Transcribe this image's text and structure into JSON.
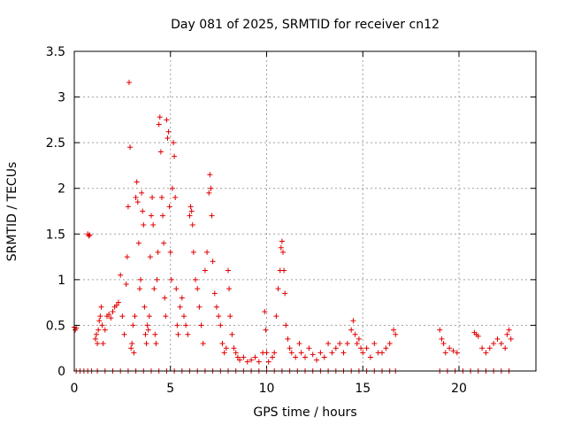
{
  "chart_data": {
    "type": "scatter",
    "title": "Day 081 of 2025, SRMTID for receiver cn12",
    "xlabel": "GPS time / hours",
    "ylabel": "SRMTID / TECUs",
    "xlim": [
      0,
      24
    ],
    "ylim": [
      0,
      3.5
    ],
    "x_ticks": [
      0,
      5,
      10,
      15,
      20
    ],
    "x_tick_labels": [
      "0",
      "5",
      "10",
      "15",
      "20"
    ],
    "y_ticks": [
      0,
      0.5,
      1,
      1.5,
      2,
      2.5,
      3,
      3.5
    ],
    "y_tick_labels": [
      "0",
      "0.5",
      "1",
      "1.5",
      "2",
      "2.5",
      "3",
      "3.5"
    ],
    "grid": true,
    "marker": "+",
    "color": "#e00000",
    "series": [
      {
        "name": "SRMTID",
        "points": [
          [
            0.0,
            0.48
          ],
          [
            0.05,
            0.45
          ],
          [
            0.1,
            0.47
          ],
          [
            0.7,
            1.5
          ],
          [
            0.75,
            1.48
          ],
          [
            0.8,
            1.49
          ],
          [
            1.1,
            0.35
          ],
          [
            1.15,
            0.4
          ],
          [
            1.2,
            0.3
          ],
          [
            1.25,
            0.45
          ],
          [
            1.3,
            0.55
          ],
          [
            1.35,
            0.6
          ],
          [
            1.4,
            0.7
          ],
          [
            1.45,
            0.5
          ],
          [
            1.5,
            0.3
          ],
          [
            1.6,
            0.45
          ],
          [
            1.7,
            0.6
          ],
          [
            1.8,
            0.62
          ],
          [
            1.9,
            0.58
          ],
          [
            2.0,
            0.65
          ],
          [
            2.1,
            0.7
          ],
          [
            2.2,
            0.72
          ],
          [
            2.3,
            0.75
          ],
          [
            2.4,
            1.05
          ],
          [
            2.5,
            0.6
          ],
          [
            2.6,
            0.4
          ],
          [
            2.7,
            0.95
          ],
          [
            2.75,
            1.25
          ],
          [
            2.8,
            1.8
          ],
          [
            2.85,
            3.16
          ],
          [
            2.9,
            2.45
          ],
          [
            2.95,
            0.25
          ],
          [
            3.0,
            0.3
          ],
          [
            3.05,
            0.5
          ],
          [
            3.1,
            0.2
          ],
          [
            3.15,
            0.6
          ],
          [
            3.2,
            1.9
          ],
          [
            3.25,
            2.07
          ],
          [
            3.3,
            1.85
          ],
          [
            3.35,
            1.4
          ],
          [
            3.4,
            0.9
          ],
          [
            3.45,
            1.0
          ],
          [
            3.5,
            1.95
          ],
          [
            3.55,
            1.75
          ],
          [
            3.6,
            1.6
          ],
          [
            3.65,
            0.7
          ],
          [
            3.7,
            0.4
          ],
          [
            3.75,
            0.3
          ],
          [
            3.8,
            0.5
          ],
          [
            3.85,
            0.45
          ],
          [
            3.9,
            0.6
          ],
          [
            3.95,
            1.25
          ],
          [
            4.0,
            1.7
          ],
          [
            4.05,
            1.9
          ],
          [
            4.1,
            1.6
          ],
          [
            4.15,
            0.9
          ],
          [
            4.2,
            0.4
          ],
          [
            4.25,
            0.3
          ],
          [
            4.3,
            1.0
          ],
          [
            4.35,
            1.3
          ],
          [
            4.4,
            2.7
          ],
          [
            4.45,
            2.78
          ],
          [
            4.5,
            2.4
          ],
          [
            4.55,
            1.9
          ],
          [
            4.6,
            1.7
          ],
          [
            4.65,
            1.4
          ],
          [
            4.7,
            0.8
          ],
          [
            4.75,
            0.6
          ],
          [
            4.8,
            2.75
          ],
          [
            4.85,
            2.55
          ],
          [
            4.9,
            2.62
          ],
          [
            4.95,
            1.8
          ],
          [
            5.0,
            1.3
          ],
          [
            5.05,
            1.0
          ],
          [
            5.1,
            2.0
          ],
          [
            5.15,
            2.5
          ],
          [
            5.2,
            2.35
          ],
          [
            5.25,
            1.9
          ],
          [
            5.3,
            0.9
          ],
          [
            5.35,
            0.5
          ],
          [
            5.4,
            0.4
          ],
          [
            5.5,
            0.7
          ],
          [
            5.6,
            0.8
          ],
          [
            5.7,
            0.6
          ],
          [
            5.8,
            0.5
          ],
          [
            5.9,
            0.4
          ],
          [
            6.0,
            1.7
          ],
          [
            6.05,
            1.8
          ],
          [
            6.1,
            1.75
          ],
          [
            6.15,
            1.6
          ],
          [
            6.2,
            1.3
          ],
          [
            6.3,
            1.0
          ],
          [
            6.4,
            0.9
          ],
          [
            6.5,
            0.7
          ],
          [
            6.6,
            0.5
          ],
          [
            6.7,
            0.3
          ],
          [
            6.8,
            1.1
          ],
          [
            6.9,
            1.3
          ],
          [
            7.0,
            1.95
          ],
          [
            7.05,
            2.15
          ],
          [
            7.1,
            2.0
          ],
          [
            7.15,
            1.7
          ],
          [
            7.2,
            1.2
          ],
          [
            7.3,
            0.85
          ],
          [
            7.4,
            0.7
          ],
          [
            7.5,
            0.6
          ],
          [
            7.6,
            0.5
          ],
          [
            7.7,
            0.3
          ],
          [
            7.8,
            0.2
          ],
          [
            7.9,
            0.25
          ],
          [
            8.0,
            1.1
          ],
          [
            8.05,
            0.9
          ],
          [
            8.1,
            0.6
          ],
          [
            8.2,
            0.4
          ],
          [
            8.3,
            0.25
          ],
          [
            8.4,
            0.2
          ],
          [
            8.5,
            0.15
          ],
          [
            8.6,
            0.12
          ],
          [
            8.8,
            0.15
          ],
          [
            9.0,
            0.1
          ],
          [
            9.2,
            0.12
          ],
          [
            9.4,
            0.15
          ],
          [
            9.6,
            0.1
          ],
          [
            9.8,
            0.2
          ],
          [
            9.9,
            0.65
          ],
          [
            9.95,
            0.45
          ],
          [
            10.0,
            0.2
          ],
          [
            10.1,
            0.1
          ],
          [
            10.3,
            0.15
          ],
          [
            10.4,
            0.2
          ],
          [
            10.5,
            0.6
          ],
          [
            10.6,
            0.9
          ],
          [
            10.7,
            1.1
          ],
          [
            10.75,
            1.35
          ],
          [
            10.8,
            1.42
          ],
          [
            10.85,
            1.3
          ],
          [
            10.9,
            1.1
          ],
          [
            10.95,
            0.85
          ],
          [
            11.0,
            0.5
          ],
          [
            11.1,
            0.35
          ],
          [
            11.2,
            0.25
          ],
          [
            11.3,
            0.2
          ],
          [
            11.5,
            0.15
          ],
          [
            11.7,
            0.3
          ],
          [
            11.8,
            0.2
          ],
          [
            12.0,
            0.15
          ],
          [
            12.2,
            0.25
          ],
          [
            12.4,
            0.18
          ],
          [
            12.6,
            0.12
          ],
          [
            12.8,
            0.2
          ],
          [
            13.0,
            0.15
          ],
          [
            13.2,
            0.3
          ],
          [
            13.4,
            0.2
          ],
          [
            13.6,
            0.25
          ],
          [
            13.8,
            0.3
          ],
          [
            14.0,
            0.2
          ],
          [
            14.2,
            0.3
          ],
          [
            14.4,
            0.45
          ],
          [
            14.5,
            0.55
          ],
          [
            14.6,
            0.4
          ],
          [
            14.7,
            0.3
          ],
          [
            14.8,
            0.35
          ],
          [
            14.9,
            0.25
          ],
          [
            15.0,
            0.2
          ],
          [
            15.2,
            0.25
          ],
          [
            15.4,
            0.15
          ],
          [
            15.6,
            0.3
          ],
          [
            15.8,
            0.2
          ],
          [
            16.0,
            0.2
          ],
          [
            16.2,
            0.25
          ],
          [
            16.4,
            0.3
          ],
          [
            16.6,
            0.45
          ],
          [
            16.7,
            0.4
          ],
          [
            19.0,
            0.45
          ],
          [
            19.1,
            0.35
          ],
          [
            19.2,
            0.3
          ],
          [
            19.3,
            0.2
          ],
          [
            19.5,
            0.25
          ],
          [
            19.7,
            0.22
          ],
          [
            19.9,
            0.2
          ],
          [
            20.8,
            0.42
          ],
          [
            20.9,
            0.4
          ],
          [
            21.0,
            0.38
          ],
          [
            21.2,
            0.25
          ],
          [
            21.4,
            0.2
          ],
          [
            21.6,
            0.25
          ],
          [
            21.8,
            0.3
          ],
          [
            22.0,
            0.35
          ],
          [
            22.2,
            0.3
          ],
          [
            22.4,
            0.25
          ],
          [
            22.5,
            0.4
          ],
          [
            22.6,
            0.45
          ],
          [
            22.7,
            0.35
          ],
          [
            0.1,
            0.0
          ],
          [
            0.3,
            0.0
          ],
          [
            0.5,
            0.0
          ],
          [
            0.7,
            0.0
          ],
          [
            0.9,
            0.0
          ],
          [
            1.2,
            0.0
          ],
          [
            1.6,
            0.0
          ],
          [
            2.0,
            0.0
          ],
          [
            2.4,
            0.0
          ],
          [
            2.8,
            0.0
          ],
          [
            3.2,
            0.0
          ],
          [
            3.6,
            0.0
          ],
          [
            4.0,
            0.0
          ],
          [
            4.4,
            0.0
          ],
          [
            4.8,
            0.0
          ],
          [
            5.2,
            0.0
          ],
          [
            5.6,
            0.0
          ],
          [
            6.0,
            0.0
          ],
          [
            6.4,
            0.0
          ],
          [
            6.8,
            0.0
          ],
          [
            7.2,
            0.0
          ],
          [
            7.6,
            0.0
          ],
          [
            8.0,
            0.0
          ],
          [
            8.4,
            0.0
          ],
          [
            8.8,
            0.0
          ],
          [
            9.2,
            0.0
          ],
          [
            9.6,
            0.0
          ],
          [
            10.0,
            0.0
          ],
          [
            10.4,
            0.0
          ],
          [
            10.8,
            0.0
          ],
          [
            11.2,
            0.0
          ],
          [
            11.6,
            0.0
          ],
          [
            12.0,
            0.0
          ],
          [
            12.4,
            0.0
          ],
          [
            12.8,
            0.0
          ],
          [
            13.2,
            0.0
          ],
          [
            13.6,
            0.0
          ],
          [
            14.0,
            0.0
          ],
          [
            14.4,
            0.0
          ],
          [
            14.8,
            0.0
          ],
          [
            15.2,
            0.0
          ],
          [
            15.6,
            0.0
          ],
          [
            16.0,
            0.0
          ],
          [
            16.4,
            0.0
          ],
          [
            16.7,
            0.0
          ],
          [
            19.0,
            0.0
          ],
          [
            19.4,
            0.0
          ],
          [
            19.8,
            0.0
          ],
          [
            20.2,
            0.0
          ],
          [
            20.6,
            0.0
          ],
          [
            21.0,
            0.0
          ],
          [
            21.4,
            0.0
          ],
          [
            21.8,
            0.0
          ],
          [
            22.2,
            0.0
          ],
          [
            22.6,
            0.0
          ]
        ]
      }
    ]
  }
}
